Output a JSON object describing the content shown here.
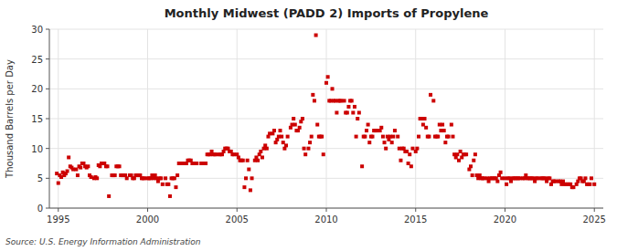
{
  "chart_data": {
    "type": "scatter",
    "title": "Monthly Midwest (PADD 2) Imports of Propylene",
    "ylabel": "Thousand Barrels per Day",
    "source": "Source: U.S. Energy Information Administration",
    "color": "#cc0000",
    "marker": "square",
    "grid": true,
    "xlim": [
      1994.5,
      2025.5
    ],
    "ylim": [
      0,
      30
    ],
    "xticks": [
      1995,
      2000,
      2005,
      2010,
      2015,
      2020,
      2025
    ],
    "yticks": [
      0,
      5,
      10,
      15,
      20,
      25,
      30
    ],
    "x": [
      1994.917,
      1995.0,
      1995.083,
      1995.167,
      1995.25,
      1995.333,
      1995.417,
      1995.5,
      1995.583,
      1995.667,
      1995.75,
      1995.833,
      1996.0,
      1996.083,
      1996.167,
      1996.25,
      1996.333,
      1996.417,
      1996.5,
      1996.583,
      1996.667,
      1996.75,
      1996.833,
      1997.0,
      1997.083,
      1997.167,
      1997.25,
      1997.333,
      1997.417,
      1997.5,
      1997.583,
      1997.667,
      1997.75,
      1997.833,
      1998.0,
      1998.083,
      1998.167,
      1998.25,
      1998.333,
      1998.417,
      1998.5,
      1998.583,
      1998.667,
      1998.75,
      1998.833,
      1999.0,
      1999.083,
      1999.167,
      1999.25,
      1999.333,
      1999.417,
      1999.5,
      1999.583,
      1999.667,
      1999.75,
      1999.833,
      2000.0,
      2000.083,
      2000.167,
      2000.25,
      2000.333,
      2000.417,
      2000.5,
      2000.583,
      2000.667,
      2000.75,
      2000.833,
      2001.0,
      2001.083,
      2001.167,
      2001.25,
      2001.333,
      2001.417,
      2001.5,
      2001.583,
      2001.667,
      2001.75,
      2001.833,
      2002.0,
      2002.083,
      2002.167,
      2002.25,
      2002.333,
      2002.417,
      2002.5,
      2002.583,
      2002.667,
      2002.75,
      2003.0,
      2003.083,
      2003.167,
      2003.25,
      2003.333,
      2003.417,
      2003.5,
      2003.583,
      2003.667,
      2003.75,
      2003.833,
      2004.0,
      2004.083,
      2004.167,
      2004.25,
      2004.333,
      2004.417,
      2004.5,
      2004.583,
      2004.667,
      2004.75,
      2004.833,
      2005.0,
      2005.083,
      2005.167,
      2005.25,
      2005.333,
      2005.417,
      2005.5,
      2005.583,
      2005.667,
      2005.75,
      2005.833,
      2006.0,
      2006.083,
      2006.167,
      2006.25,
      2006.333,
      2006.417,
      2006.5,
      2006.583,
      2006.667,
      2006.75,
      2006.833,
      2007.0,
      2007.083,
      2007.167,
      2007.25,
      2007.333,
      2007.417,
      2007.5,
      2007.583,
      2007.667,
      2007.75,
      2007.833,
      2008.0,
      2008.083,
      2008.167,
      2008.25,
      2008.333,
      2008.417,
      2008.5,
      2008.583,
      2008.667,
      2008.75,
      2008.833,
      2009.0,
      2009.083,
      2009.167,
      2009.25,
      2009.333,
      2009.417,
      2009.5,
      2009.583,
      2009.667,
      2009.75,
      2009.833,
      2010.0,
      2010.083,
      2010.167,
      2010.25,
      2010.333,
      2010.417,
      2010.5,
      2010.583,
      2010.667,
      2010.75,
      2010.833,
      2011.0,
      2011.083,
      2011.167,
      2011.25,
      2011.333,
      2011.417,
      2011.5,
      2011.583,
      2011.667,
      2011.75,
      2011.833,
      2012.0,
      2012.083,
      2012.167,
      2012.25,
      2012.333,
      2012.417,
      2012.5,
      2012.583,
      2012.667,
      2012.75,
      2012.833,
      2013.0,
      2013.083,
      2013.167,
      2013.25,
      2013.333,
      2013.417,
      2013.5,
      2013.583,
      2013.667,
      2013.75,
      2013.833,
      2014.0,
      2014.083,
      2014.167,
      2014.25,
      2014.333,
      2014.417,
      2014.5,
      2014.583,
      2014.667,
      2014.75,
      2014.833,
      2015.0,
      2015.083,
      2015.167,
      2015.25,
      2015.333,
      2015.417,
      2015.5,
      2015.583,
      2015.667,
      2015.75,
      2015.833,
      2016.0,
      2016.083,
      2016.167,
      2016.25,
      2016.333,
      2016.417,
      2016.5,
      2016.583,
      2016.667,
      2016.75,
      2016.833,
      2017.0,
      2017.083,
      2017.167,
      2017.25,
      2017.333,
      2017.417,
      2017.5,
      2017.583,
      2017.667,
      2017.75,
      2017.833,
      2018.0,
      2018.083,
      2018.167,
      2018.25,
      2018.333,
      2018.417,
      2018.5,
      2018.583,
      2018.667,
      2018.75,
      2018.833,
      2019.0,
      2019.083,
      2019.167,
      2019.25,
      2019.333,
      2019.417,
      2019.5,
      2019.583,
      2019.667,
      2019.75,
      2019.833,
      2020.0,
      2020.083,
      2020.167,
      2020.25,
      2020.333,
      2020.417,
      2020.5,
      2020.583,
      2020.667,
      2020.75,
      2020.833,
      2021.0,
      2021.083,
      2021.167,
      2021.25,
      2021.333,
      2021.417,
      2021.5,
      2021.583,
      2021.667,
      2021.75,
      2021.833,
      2022.0,
      2022.083,
      2022.167,
      2022.25,
      2022.333,
      2022.417,
      2022.5,
      2022.583,
      2022.667,
      2022.75,
      2022.833,
      2023.0,
      2023.083,
      2023.167,
      2023.25,
      2023.333,
      2023.417,
      2023.5,
      2023.583,
      2023.667,
      2023.75,
      2023.833,
      2024.0,
      2024.083,
      2024.167,
      2024.25,
      2024.333,
      2024.417,
      2024.5,
      2024.583,
      2024.667,
      2024.75,
      2024.833,
      2025.0
    ],
    "values": [
      5.8,
      4.2,
      5.5,
      5.2,
      6.0,
      5.5,
      5.8,
      6.2,
      8.5,
      7.0,
      6.8,
      6.5,
      6.5,
      5.5,
      7.0,
      6.8,
      7.5,
      7.5,
      7.0,
      6.8,
      7.0,
      5.5,
      5.2,
      5.0,
      5.2,
      5.0,
      7.2,
      7.0,
      7.5,
      7.5,
      7.5,
      7.0,
      7.0,
      2.0,
      5.5,
      5.5,
      5.5,
      7.0,
      7.0,
      7.0,
      5.5,
      5.5,
      5.5,
      5.5,
      5.0,
      5.5,
      5.5,
      5.0,
      5.0,
      5.5,
      5.5,
      5.5,
      5.5,
      5.0,
      5.0,
      5.0,
      5.0,
      5.0,
      5.0,
      5.5,
      5.0,
      5.5,
      5.0,
      4.5,
      5.0,
      5.0,
      4.0,
      5.0,
      4.0,
      4.0,
      2.0,
      5.0,
      5.0,
      5.0,
      3.5,
      5.5,
      7.5,
      7.5,
      7.5,
      7.5,
      7.5,
      8.0,
      8.0,
      8.0,
      7.5,
      7.5,
      7.5,
      7.5,
      7.5,
      7.5,
      7.5,
      7.5,
      9.0,
      9.0,
      9.0,
      9.5,
      9.0,
      9.0,
      9.0,
      9.0,
      9.0,
      9.0,
      9.5,
      10.0,
      10.0,
      10.0,
      9.5,
      9.5,
      9.0,
      9.0,
      9.0,
      8.5,
      8.0,
      8.0,
      8.0,
      3.5,
      5.0,
      8.0,
      6.5,
      3.0,
      5.0,
      8.0,
      8.5,
      8.0,
      9.0,
      9.5,
      8.5,
      10.0,
      10.5,
      10.0,
      12.0,
      12.5,
      12.5,
      13.0,
      11.0,
      11.5,
      12.0,
      13.0,
      12.0,
      11.0,
      10.0,
      10.5,
      12.0,
      13.5,
      14.0,
      15.0,
      14.0,
      13.0,
      13.0,
      13.5,
      14.5,
      15.0,
      10.0,
      9.0,
      10.0,
      11.0,
      12.0,
      19.0,
      18.0,
      29.0,
      14.0,
      12.0,
      12.0,
      12.0,
      9.0,
      21.0,
      22.0,
      18.0,
      18.0,
      20.0,
      18.0,
      18.0,
      16.0,
      18.0,
      18.0,
      18.0,
      18.0,
      16.0,
      16.0,
      17.0,
      18.0,
      18.0,
      16.0,
      17.0,
      12.0,
      15.0,
      16.0,
      7.0,
      12.0,
      12.0,
      13.0,
      14.0,
      11.0,
      12.0,
      12.0,
      13.0,
      13.0,
      13.0,
      13.0,
      13.5,
      12.0,
      11.0,
      10.0,
      12.0,
      11.5,
      12.0,
      11.0,
      12.0,
      13.0,
      12.0,
      10.0,
      8.0,
      10.0,
      10.0,
      9.5,
      9.5,
      7.5,
      9.0,
      7.0,
      10.0,
      9.5,
      10.0,
      12.0,
      15.0,
      15.0,
      14.0,
      15.0,
      13.5,
      12.0,
      12.0,
      19.0,
      18.0,
      12.0,
      12.0,
      12.0,
      14.0,
      13.0,
      14.0,
      13.0,
      11.0,
      12.0,
      12.0,
      14.0,
      12.0,
      9.0,
      8.5,
      9.0,
      8.0,
      9.5,
      8.5,
      9.0,
      9.0,
      9.0,
      6.5,
      7.0,
      5.5,
      8.0,
      9.0,
      5.5,
      5.0,
      5.5,
      5.0,
      5.0,
      5.0,
      5.0,
      4.5,
      5.0,
      5.0,
      5.0,
      5.0,
      5.0,
      4.5,
      5.5,
      6.0,
      5.0,
      5.0,
      4.0,
      5.0,
      5.0,
      4.5,
      5.0,
      5.0,
      5.0,
      5.0,
      5.0,
      5.0,
      5.0,
      5.0,
      5.5,
      5.0,
      5.0,
      5.0,
      5.0,
      5.0,
      4.5,
      5.0,
      5.0,
      5.0,
      5.0,
      5.0,
      5.0,
      4.5,
      5.0,
      5.0,
      4.0,
      4.5,
      4.5,
      4.5,
      4.5,
      4.5,
      4.0,
      4.5,
      4.0,
      4.0,
      4.0,
      4.0,
      4.0,
      3.5,
      3.5,
      4.0,
      4.5,
      5.0,
      5.0,
      4.5,
      4.5,
      5.0,
      4.0,
      4.0,
      4.0,
      5.0,
      4.0
    ]
  }
}
